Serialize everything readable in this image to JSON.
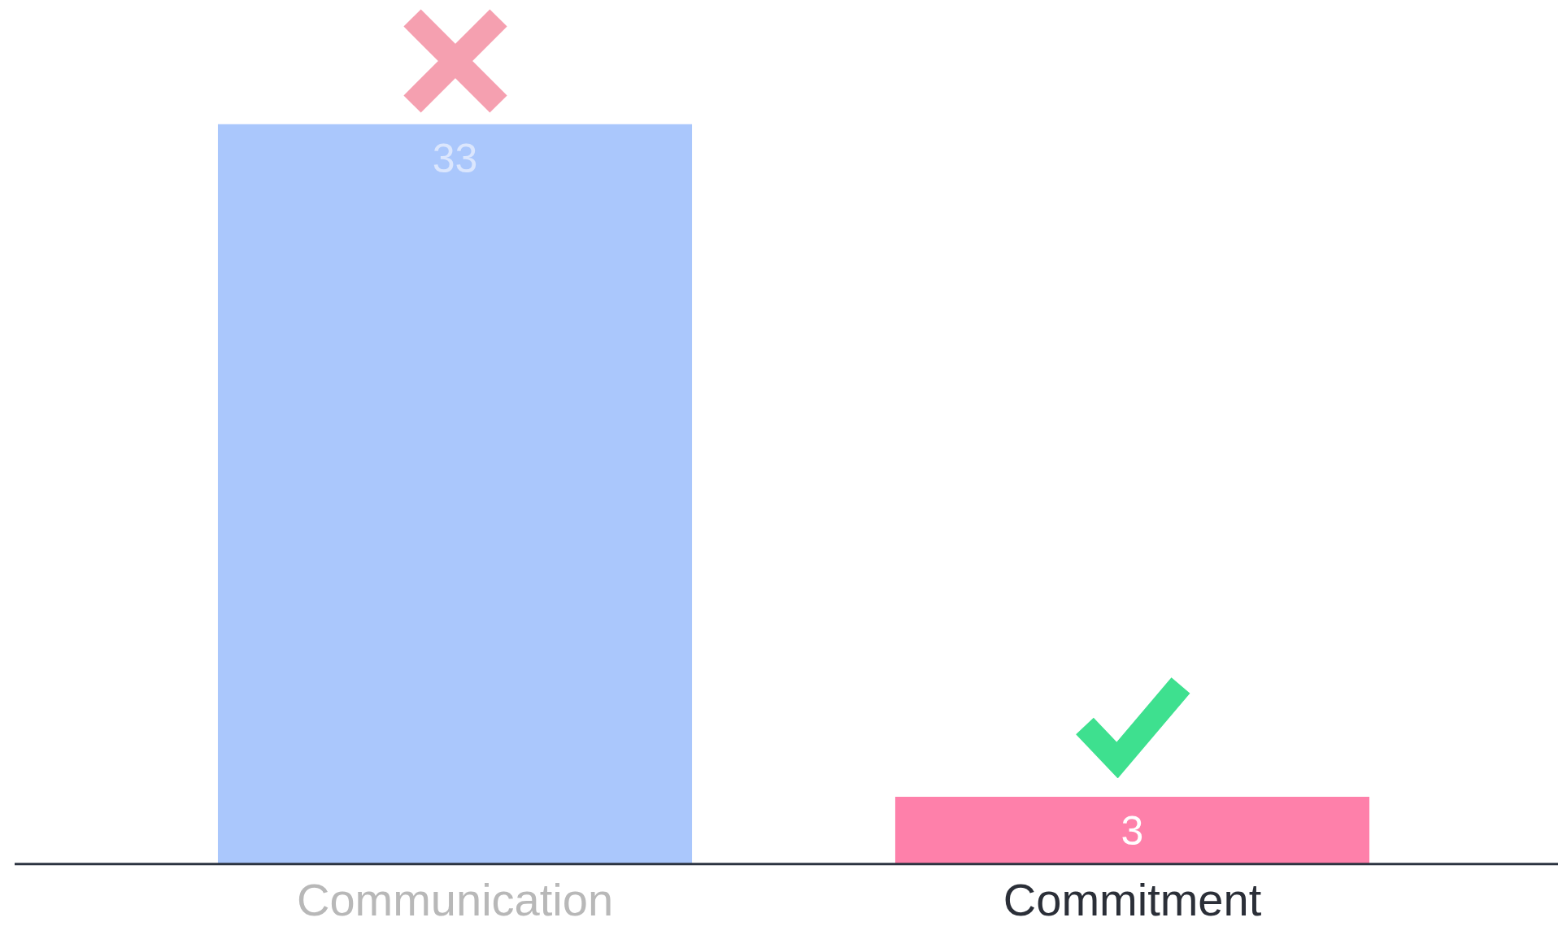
{
  "chart_data": {
    "type": "bar",
    "categories": [
      "Communication",
      "Commitment"
    ],
    "values": [
      33,
      3
    ],
    "colors": [
      "#aac7fc",
      "#fe80aa"
    ],
    "data_labels": true,
    "tick_labels": "x",
    "grid": false,
    "legend": false
  }
}
